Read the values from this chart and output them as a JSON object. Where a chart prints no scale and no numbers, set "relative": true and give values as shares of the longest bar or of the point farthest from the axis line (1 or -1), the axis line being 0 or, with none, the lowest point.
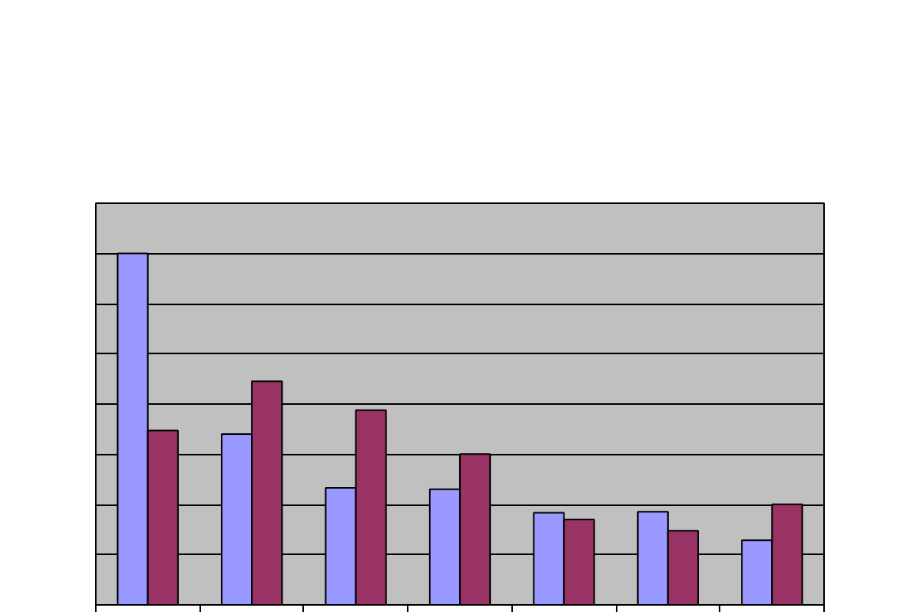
{
  "chart_data": {
    "type": "bar",
    "relative": true,
    "categories": [
      null,
      null,
      null,
      null,
      null,
      null,
      null
    ],
    "series": [
      {
        "color": "#9999ff",
        "values": [
          1,
          0.486,
          0.333,
          0.329,
          0.262,
          0.265,
          0.184
        ]
      },
      {
        "color": "#993366",
        "values": [
          0.496,
          0.636,
          0.554,
          0.429,
          0.243,
          0.211,
          0.286
        ]
      }
    ],
    "grid": "y"
  }
}
